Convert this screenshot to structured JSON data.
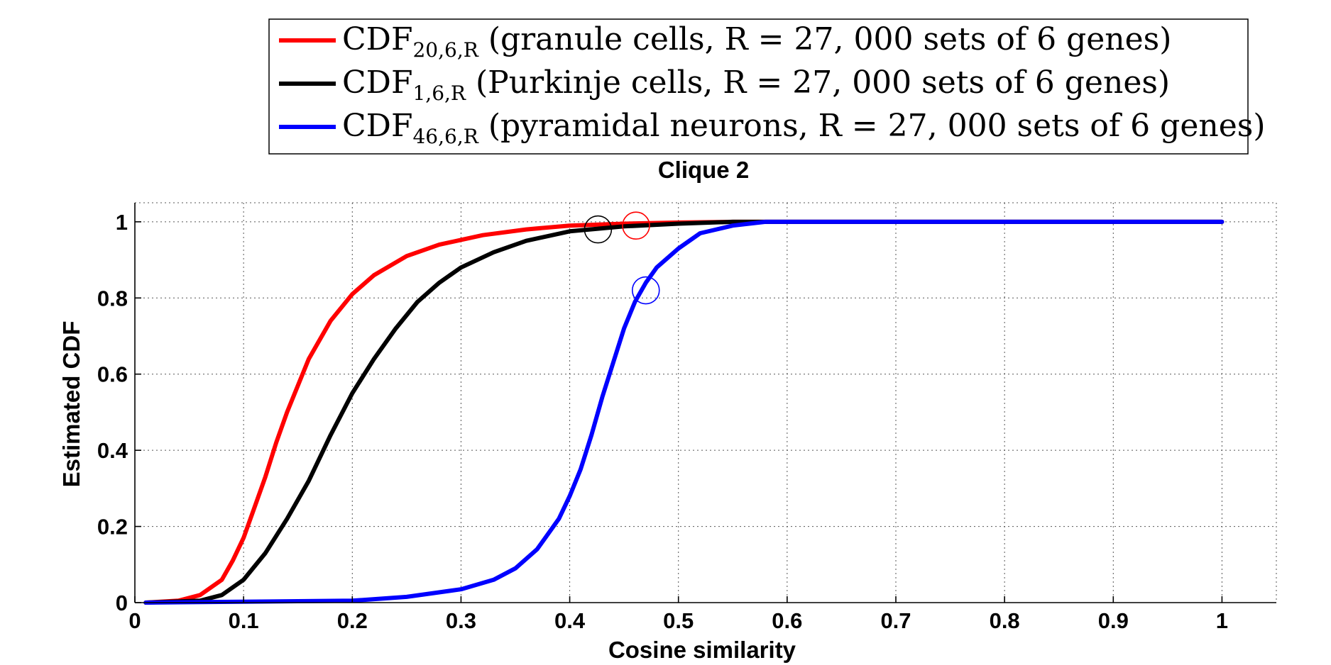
{
  "chart_data": {
    "type": "line",
    "title": "Clique 2",
    "xlabel": "Cosine similarity",
    "ylabel": "Estimated CDF",
    "xlim": [
      0,
      1.05
    ],
    "ylim": [
      0,
      1.05
    ],
    "xticks": [
      0,
      0.1,
      0.2,
      0.3,
      0.4,
      0.5,
      0.6,
      0.7,
      0.8,
      0.9,
      1
    ],
    "xtick_labels": [
      "0",
      "0.1",
      "0.2",
      "0.3",
      "0.4",
      "0.5",
      "0.6",
      "0.7",
      "0.8",
      "0.9",
      "1"
    ],
    "yticks": [
      0,
      0.2,
      0.4,
      0.6,
      0.8,
      1
    ],
    "ytick_labels": [
      "0",
      "0.2",
      "0.4",
      "0.6",
      "0.8",
      "1"
    ],
    "grid": true,
    "legend": {
      "placement": "top",
      "entries": [
        {
          "main": "CDF",
          "sub": "20,6,R",
          "desc": "(granule cells, R = 27, 000 sets of 6 genes)",
          "color": "#ff0000"
        },
        {
          "main": "CDF",
          "sub": "1,6,R",
          "desc": "(Purkinje cells, R = 27, 000 sets of 6 genes)",
          "color": "#000000"
        },
        {
          "main": "CDF",
          "sub": "46,6,R",
          "desc": "(pyramidal neurons, R = 27, 000 sets of 6 genes)",
          "color": "#0000ff"
        }
      ]
    },
    "series": [
      {
        "name": "CDF20,6,R (granule cells, R = 27,000 sets of 6 genes)",
        "color": "#ff0000",
        "x": [
          0.01,
          0.04,
          0.06,
          0.08,
          0.09,
          0.1,
          0.11,
          0.12,
          0.13,
          0.14,
          0.15,
          0.16,
          0.18,
          0.2,
          0.22,
          0.25,
          0.28,
          0.32,
          0.36,
          0.4,
          0.45,
          0.5,
          0.55,
          0.6,
          1.0
        ],
        "y": [
          0.0,
          0.005,
          0.02,
          0.06,
          0.11,
          0.17,
          0.25,
          0.33,
          0.42,
          0.5,
          0.57,
          0.64,
          0.74,
          0.81,
          0.86,
          0.91,
          0.94,
          0.965,
          0.98,
          0.99,
          0.995,
          0.998,
          1.0,
          1.0,
          1.0
        ]
      },
      {
        "name": "CDF1,6,R (Purkinje cells, R = 27,000 sets of 6 genes)",
        "color": "#000000",
        "x": [
          0.01,
          0.06,
          0.08,
          0.1,
          0.12,
          0.14,
          0.16,
          0.18,
          0.2,
          0.22,
          0.24,
          0.26,
          0.28,
          0.3,
          0.33,
          0.36,
          0.4,
          0.45,
          0.5,
          0.55,
          0.6,
          1.0
        ],
        "y": [
          0.0,
          0.005,
          0.02,
          0.06,
          0.13,
          0.22,
          0.32,
          0.44,
          0.55,
          0.64,
          0.72,
          0.79,
          0.84,
          0.88,
          0.92,
          0.95,
          0.975,
          0.988,
          0.995,
          1.0,
          1.0,
          1.0
        ]
      },
      {
        "name": "CDF46,6,R (pyramidal neurons, R = 27,000 sets of 6 genes)",
        "color": "#0000ff",
        "x": [
          0.01,
          0.2,
          0.25,
          0.3,
          0.33,
          0.35,
          0.37,
          0.39,
          0.4,
          0.41,
          0.42,
          0.43,
          0.44,
          0.45,
          0.46,
          0.47,
          0.48,
          0.5,
          0.52,
          0.55,
          0.58,
          0.6,
          1.0
        ],
        "y": [
          0.0,
          0.005,
          0.015,
          0.035,
          0.06,
          0.09,
          0.14,
          0.22,
          0.28,
          0.35,
          0.44,
          0.54,
          0.63,
          0.72,
          0.79,
          0.84,
          0.88,
          0.93,
          0.97,
          0.99,
          1.0,
          1.0,
          1.0
        ]
      }
    ],
    "markers": [
      {
        "x": 0.426,
        "y": 0.98,
        "color": "#000000"
      },
      {
        "x": 0.461,
        "y": 0.99,
        "color": "#ff0000"
      },
      {
        "x": 0.47,
        "y": 0.82,
        "color": "#0000ff"
      }
    ]
  }
}
